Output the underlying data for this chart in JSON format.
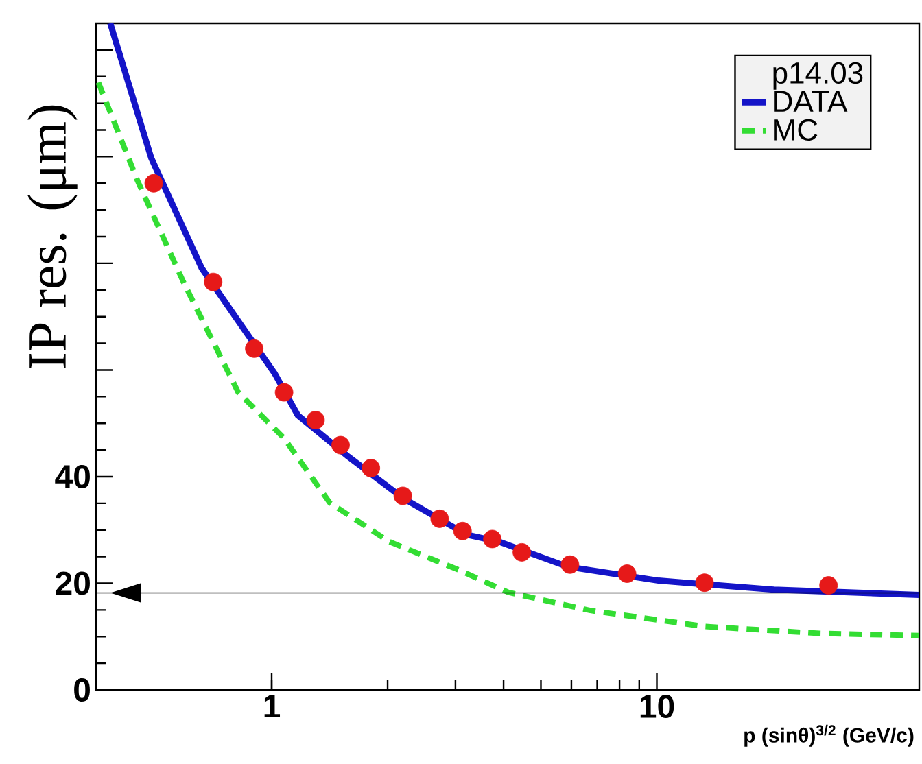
{
  "chart_data": {
    "type": "line",
    "xlabel": "p (sinθ)$^{3/2}$ (GeV/c)",
    "ylabel": "IP res. (μm)",
    "legend_title": "p14.03",
    "log": "x",
    "xlim": [
      0.35,
      48
    ],
    "xticks": [
      1,
      10
    ],
    "ylim": [
      0,
      125
    ],
    "yticks": [
      0,
      20,
      40,
      {
        "value": 60,
        "label": null
      },
      {
        "value": 80,
        "label": null
      },
      {
        "value": 100,
        "label": null
      },
      {
        "value": 120,
        "label": null
      }
    ],
    "legend": "top right",
    "series": [
      {
        "type": "scatter",
        "marker": "circle",
        "color": "#e61919",
        "x": [
          0.494,
          0.705,
          0.901,
          1.077,
          1.3,
          1.51,
          1.81,
          2.19,
          2.73,
          3.13,
          3.74,
          4.46,
          5.95,
          8.37,
          13.3,
          27.9
        ],
        "values": [
          95.0,
          76.5,
          64.0,
          55.8,
          50.6,
          45.9,
          41.6,
          36.4,
          32.1,
          29.8,
          28.3,
          25.8,
          23.5,
          21.8,
          20.1,
          19.6
        ]
      },
      {
        "type": "line",
        "name": "DATA",
        "line_style": "solid",
        "color": "#1414c8",
        "x": [
          0.381,
          0.487,
          0.658,
          1.019,
          1.169,
          1.578,
          2.19,
          3.21,
          3.89,
          5.87,
          10.1,
          20.1,
          48
        ],
        "values": [
          125,
          99.7,
          79.1,
          59.3,
          51.5,
          43.8,
          36.0,
          29.1,
          27.8,
          23.1,
          20.5,
          18.8,
          17.8
        ]
      },
      {
        "type": "line",
        "name": "MC",
        "line_style": "dashed",
        "color": "#33dd33",
        "x": [
          0.355,
          0.449,
          0.59,
          0.775,
          0.819,
          1.077,
          1.415,
          2.02,
          3.13,
          4.11,
          6.72,
          13.3,
          26.4,
          48
        ],
        "values": [
          113.9,
          95.4,
          76.5,
          59.3,
          55.8,
          47.2,
          35.1,
          27.8,
          22.2,
          18.3,
          14.9,
          11.9,
          10.6,
          10.2
        ]
      }
    ],
    "ref_lines": [
      {
        "axis": "y",
        "value": 18.2,
        "color": "#000000"
      }
    ]
  }
}
